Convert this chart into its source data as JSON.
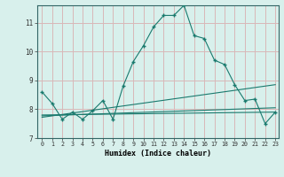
{
  "xlabel": "Humidex (Indice chaleur)",
  "background_color": "#d8f0ec",
  "grid_color": "#d8b8b8",
  "line_color": "#1a7a6e",
  "xlim": [
    -0.5,
    23.3
  ],
  "ylim": [
    7.0,
    11.6
  ],
  "yticks": [
    7,
    8,
    9,
    10,
    11
  ],
  "xticks": [
    0,
    1,
    2,
    3,
    4,
    5,
    6,
    7,
    8,
    9,
    10,
    11,
    12,
    13,
    14,
    15,
    16,
    17,
    18,
    19,
    20,
    21,
    22,
    23
  ],
  "series1_x": [
    0,
    1,
    2,
    3,
    4,
    5,
    6,
    7,
    8,
    9,
    10,
    11,
    12,
    13,
    14,
    15,
    16,
    17,
    18,
    19,
    20,
    21,
    22,
    23
  ],
  "series1_y": [
    8.6,
    8.2,
    7.65,
    7.9,
    7.65,
    7.95,
    8.3,
    7.65,
    8.8,
    9.65,
    10.2,
    10.85,
    11.25,
    11.25,
    11.6,
    10.55,
    10.45,
    9.7,
    9.55,
    8.85,
    8.3,
    8.35,
    7.5,
    7.9
  ],
  "series2_x": [
    0,
    23
  ],
  "series2_y": [
    7.72,
    8.85
  ],
  "series3_x": [
    0,
    23
  ],
  "series3_y": [
    7.77,
    8.05
  ],
  "series4_x": [
    0,
    23
  ],
  "series4_y": [
    7.8,
    7.9
  ]
}
